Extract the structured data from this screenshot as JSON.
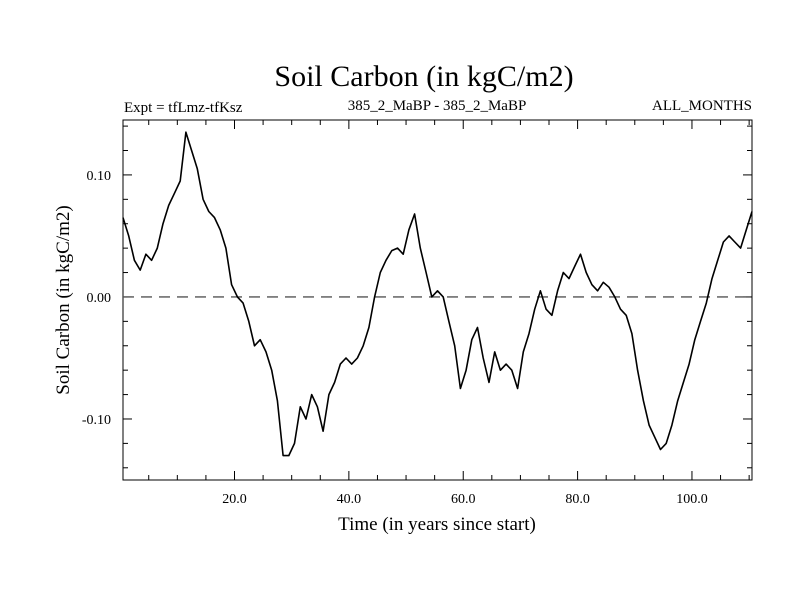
{
  "chart_data": {
    "type": "line",
    "title": "Soil Carbon (in kgC/m2)",
    "subtitle_left": "Expt = tfLmz-tfKsz",
    "subtitle_center": "385_2_MaBP - 385_2_MaBP",
    "subtitle_right": "ALL_MONTHS",
    "xlabel": "Time (in years since start)",
    "ylabel": "Soil Carbon (in kgC/m2)",
    "xlim": [
      0.5,
      110.5
    ],
    "ylim": [
      -0.15,
      0.145
    ],
    "x_ticks": [
      20,
      40,
      60,
      80,
      100
    ],
    "x_tick_labels": [
      "20.0",
      "40.0",
      "60.0",
      "80.0",
      "100.0"
    ],
    "y_ticks": [
      -0.1,
      0.0,
      0.1
    ],
    "y_tick_labels": [
      "-0.10",
      "0.00",
      "0.10"
    ],
    "reference_line": {
      "y": 0.0,
      "style": "dashed"
    },
    "series": [
      {
        "name": "Soil Carbon",
        "x": [
          0.5,
          1.5,
          2.5,
          3.5,
          4.5,
          5.5,
          6.5,
          7.5,
          8.5,
          9.5,
          10.5,
          11.5,
          12.5,
          13.5,
          14.5,
          15.5,
          16.5,
          17.5,
          18.5,
          19.5,
          20.5,
          21.5,
          22.5,
          23.5,
          24.5,
          25.5,
          26.5,
          27.5,
          28.5,
          29.5,
          30.5,
          31.5,
          32.5,
          33.5,
          34.5,
          35.5,
          36.5,
          37.5,
          38.5,
          39.5,
          40.5,
          41.5,
          42.5,
          43.5,
          44.5,
          45.5,
          46.5,
          47.5,
          48.5,
          49.5,
          50.5,
          51.5,
          52.5,
          53.5,
          54.5,
          55.5,
          56.5,
          57.5,
          58.5,
          59.5,
          60.5,
          61.5,
          62.5,
          63.5,
          64.5,
          65.5,
          66.5,
          67.5,
          68.5,
          69.5,
          70.5,
          71.5,
          72.5,
          73.5,
          74.5,
          75.5,
          76.5,
          77.5,
          78.5,
          79.5,
          80.5,
          81.5,
          82.5,
          83.5,
          84.5,
          85.5,
          86.5,
          87.5,
          88.5,
          89.5,
          90.5,
          91.5,
          92.5,
          93.5,
          94.5,
          95.5,
          96.5,
          97.5,
          98.5,
          99.5,
          100.5,
          101.5,
          102.5,
          103.5,
          104.5,
          105.5,
          106.5,
          107.5,
          108.5,
          109.5,
          110.5
        ],
        "values": [
          0.065,
          0.05,
          0.03,
          0.022,
          0.035,
          0.03,
          0.04,
          0.06,
          0.075,
          0.085,
          0.095,
          0.135,
          0.12,
          0.105,
          0.08,
          0.07,
          0.065,
          0.055,
          0.04,
          0.01,
          0.0,
          -0.005,
          -0.02,
          -0.04,
          -0.035,
          -0.045,
          -0.06,
          -0.085,
          -0.13,
          -0.13,
          -0.12,
          -0.09,
          -0.1,
          -0.08,
          -0.09,
          -0.11,
          -0.08,
          -0.07,
          -0.055,
          -0.05,
          -0.055,
          -0.05,
          -0.04,
          -0.025,
          0.0,
          0.02,
          0.03,
          0.038,
          0.04,
          0.035,
          0.055,
          0.068,
          0.04,
          0.02,
          0.0,
          0.005,
          0.0,
          -0.02,
          -0.04,
          -0.075,
          -0.06,
          -0.035,
          -0.025,
          -0.05,
          -0.07,
          -0.045,
          -0.06,
          -0.055,
          -0.06,
          -0.075,
          -0.045,
          -0.03,
          -0.01,
          0.005,
          -0.01,
          -0.015,
          0.005,
          0.02,
          0.015,
          0.025,
          0.035,
          0.02,
          0.01,
          0.005,
          0.012,
          0.008,
          0.0,
          -0.01,
          -0.015,
          -0.03,
          -0.06,
          -0.085,
          -0.105,
          -0.115,
          -0.125,
          -0.12,
          -0.105,
          -0.085,
          -0.07,
          -0.055,
          -0.035,
          -0.02,
          -0.005,
          0.015,
          0.03,
          0.045,
          0.05,
          0.045,
          0.04,
          0.055,
          0.07
        ]
      }
    ]
  }
}
